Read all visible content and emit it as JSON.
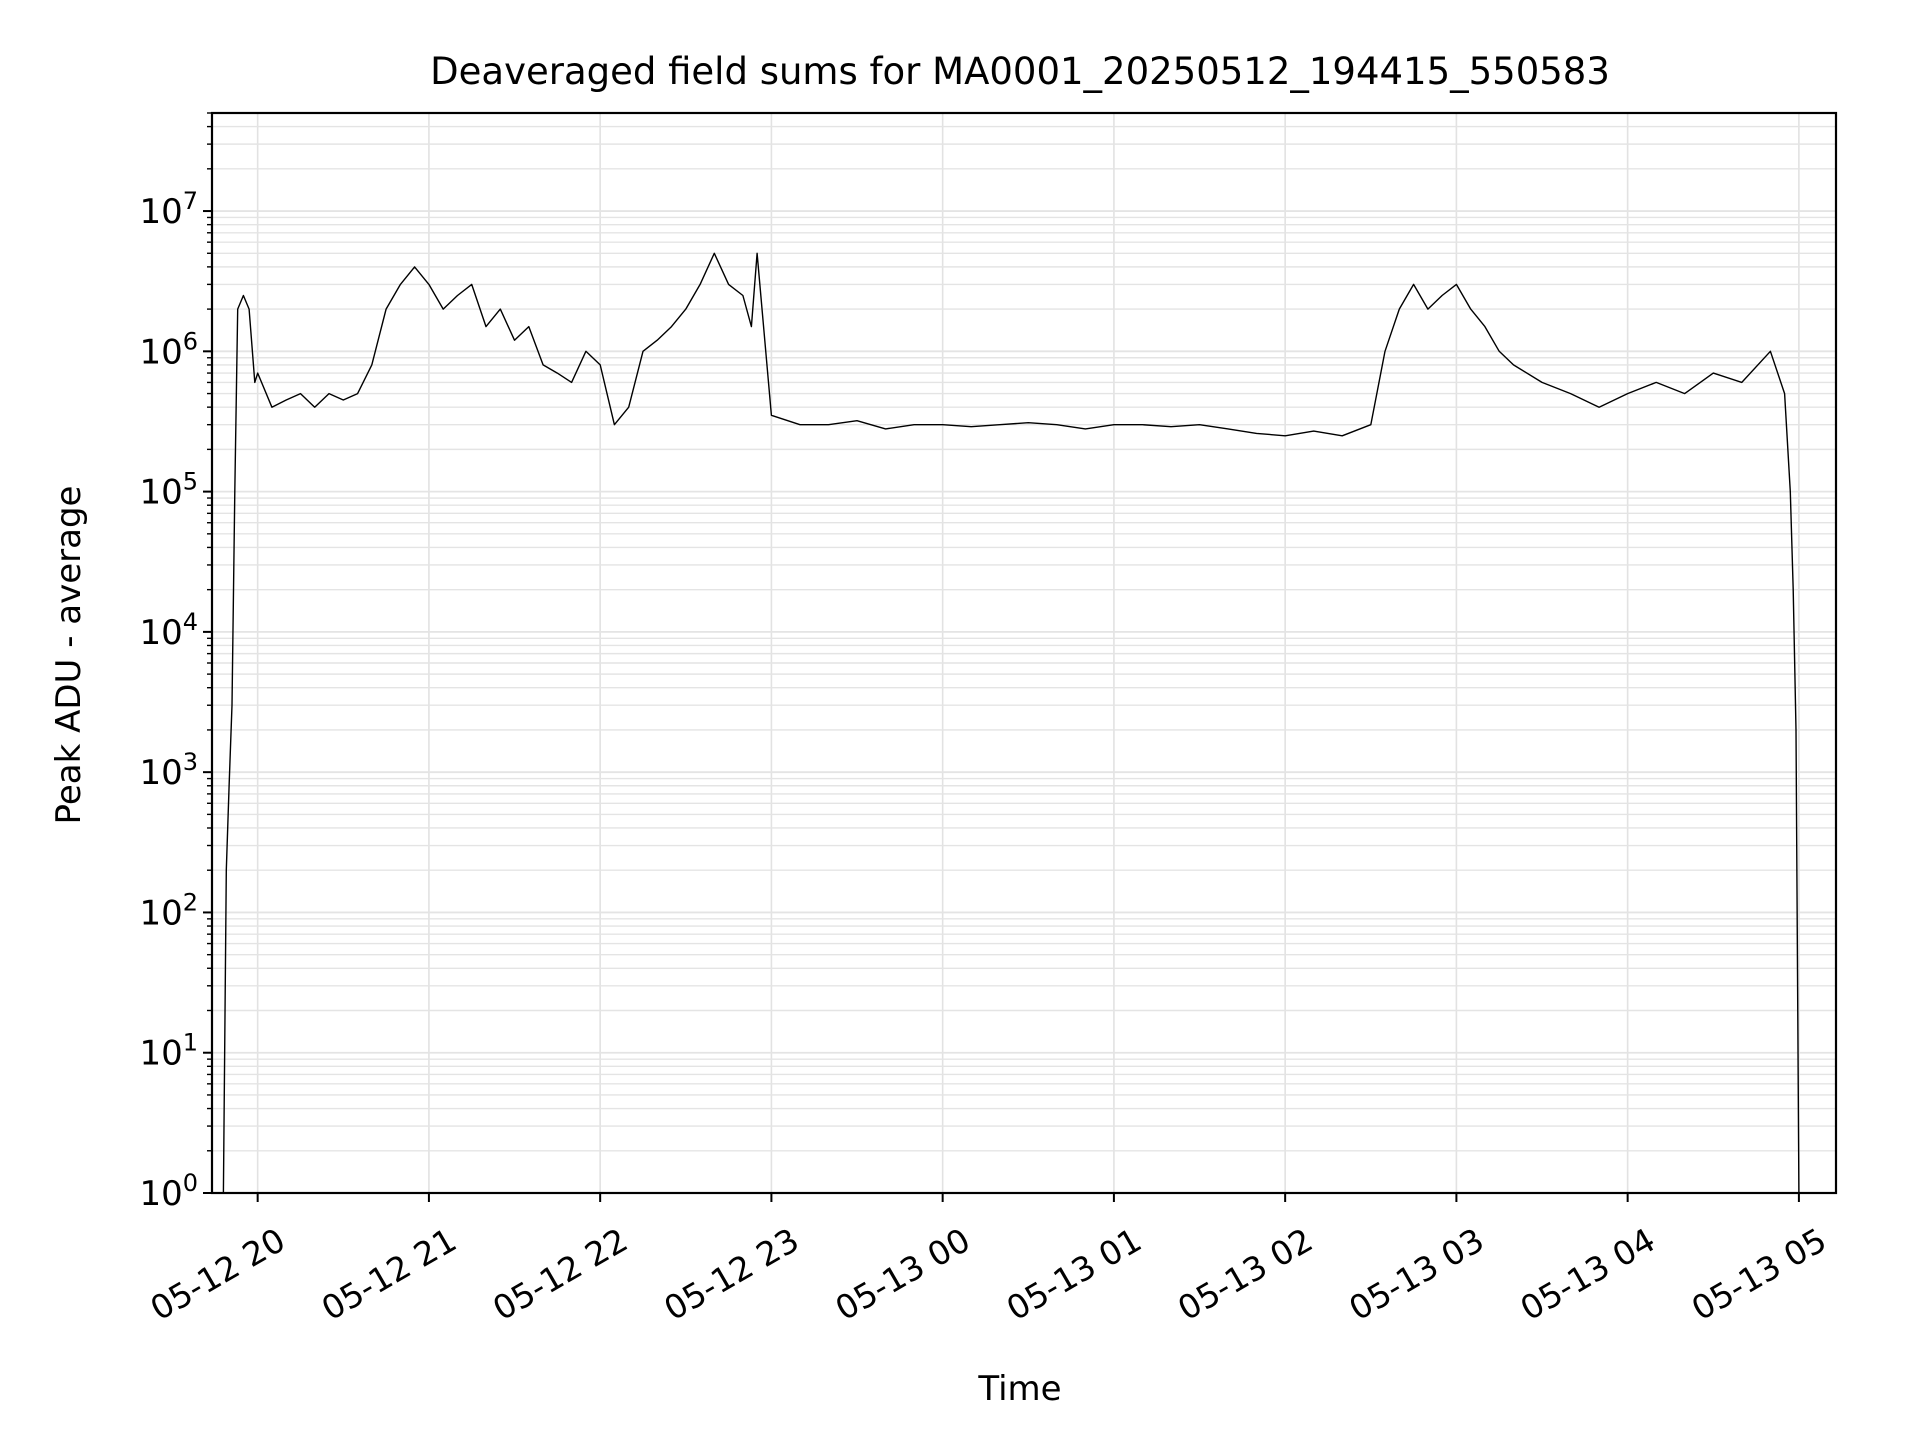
{
  "chart_data": {
    "type": "line",
    "title": "Deaveraged field sums for MA0001_20250512_194415_550583",
    "xlabel": "Time",
    "ylabel": "Peak ADU - average",
    "yscale": "log",
    "ylim": [
      1,
      50000000
    ],
    "xlim": [
      "2025-05-12 19:44",
      "2025-05-13 05:13"
    ],
    "grid": true,
    "x_ticks": [
      "05-12 20",
      "05-12 21",
      "05-12 22",
      "05-12 23",
      "05-13 00",
      "05-13 01",
      "05-13 02",
      "05-13 03",
      "05-13 04",
      "05-13 05"
    ],
    "y_ticks": [
      {
        "base": "10",
        "exp": "0"
      },
      {
        "base": "10",
        "exp": "1"
      },
      {
        "base": "10",
        "exp": "2"
      },
      {
        "base": "10",
        "exp": "3"
      },
      {
        "base": "10",
        "exp": "4"
      },
      {
        "base": "10",
        "exp": "5"
      },
      {
        "base": "10",
        "exp": "6"
      },
      {
        "base": "10",
        "exp": "7"
      }
    ],
    "line_color": "#000000",
    "series": [
      {
        "x": [
          "2025-05-12 19:48",
          "2025-05-12 19:49",
          "2025-05-12 19:50",
          "2025-05-12 19:51",
          "2025-05-12 19:52",
          "2025-05-12 19:53",
          "2025-05-12 19:55",
          "2025-05-12 19:57",
          "2025-05-12 19:59",
          "2025-05-12 20:00",
          "2025-05-12 20:05",
          "2025-05-12 20:10",
          "2025-05-12 20:15",
          "2025-05-12 20:20",
          "2025-05-12 20:25",
          "2025-05-12 20:30",
          "2025-05-12 20:35",
          "2025-05-12 20:40",
          "2025-05-12 20:45",
          "2025-05-12 20:50",
          "2025-05-12 20:55",
          "2025-05-12 21:00",
          "2025-05-12 21:05",
          "2025-05-12 21:10",
          "2025-05-12 21:15",
          "2025-05-12 21:20",
          "2025-05-12 21:25",
          "2025-05-12 21:30",
          "2025-05-12 21:35",
          "2025-05-12 21:40",
          "2025-05-12 21:45",
          "2025-05-12 21:50",
          "2025-05-12 21:55",
          "2025-05-12 22:00",
          "2025-05-12 22:05",
          "2025-05-12 22:10",
          "2025-05-12 22:15",
          "2025-05-12 22:20",
          "2025-05-12 22:25",
          "2025-05-12 22:30",
          "2025-05-12 22:35",
          "2025-05-12 22:40",
          "2025-05-12 22:45",
          "2025-05-12 22:50",
          "2025-05-12 22:53",
          "2025-05-12 22:55",
          "2025-05-12 23:00",
          "2025-05-12 23:10",
          "2025-05-12 23:20",
          "2025-05-12 23:30",
          "2025-05-12 23:40",
          "2025-05-12 23:50",
          "2025-05-13 00:00",
          "2025-05-13 00:10",
          "2025-05-13 00:20",
          "2025-05-13 00:30",
          "2025-05-13 00:40",
          "2025-05-13 00:50",
          "2025-05-13 01:00",
          "2025-05-13 01:10",
          "2025-05-13 01:20",
          "2025-05-13 01:30",
          "2025-05-13 01:40",
          "2025-05-13 01:50",
          "2025-05-13 02:00",
          "2025-05-13 02:10",
          "2025-05-13 02:20",
          "2025-05-13 02:30",
          "2025-05-13 02:35",
          "2025-05-13 02:40",
          "2025-05-13 02:45",
          "2025-05-13 02:50",
          "2025-05-13 02:55",
          "2025-05-13 03:00",
          "2025-05-13 03:05",
          "2025-05-13 03:10",
          "2025-05-13 03:15",
          "2025-05-13 03:20",
          "2025-05-13 03:30",
          "2025-05-13 03:40",
          "2025-05-13 03:50",
          "2025-05-13 04:00",
          "2025-05-13 04:10",
          "2025-05-13 04:20",
          "2025-05-13 04:30",
          "2025-05-13 04:40",
          "2025-05-13 04:50",
          "2025-05-13 04:55",
          "2025-05-13 04:57",
          "2025-05-13 04:58",
          "2025-05-13 04:59",
          "2025-05-13 05:00"
        ],
        "y": [
          1,
          200,
          800,
          3000,
          100000,
          2000000,
          2500000,
          2000000,
          600000,
          700000,
          400000,
          450000,
          500000,
          400000,
          500000,
          450000,
          500000,
          800000,
          2000000,
          3000000,
          4000000,
          3000000,
          2000000,
          2500000,
          3000000,
          1500000,
          2000000,
          1200000,
          1500000,
          800000,
          700000,
          600000,
          1000000,
          800000,
          300000,
          400000,
          1000000,
          1200000,
          1500000,
          2000000,
          3000000,
          5000000,
          3000000,
          2500000,
          1500000,
          5000000,
          350000,
          300000,
          300000,
          320000,
          280000,
          300000,
          300000,
          290000,
          300000,
          310000,
          300000,
          280000,
          300000,
          300000,
          290000,
          300000,
          280000,
          260000,
          250000,
          270000,
          250000,
          300000,
          1000000,
          2000000,
          3000000,
          2000000,
          2500000,
          3000000,
          2000000,
          1500000,
          1000000,
          800000,
          600000,
          500000,
          400000,
          500000,
          600000,
          500000,
          700000,
          600000,
          1000000,
          500000,
          100000,
          20000,
          2000,
          1
        ]
      }
    ]
  }
}
